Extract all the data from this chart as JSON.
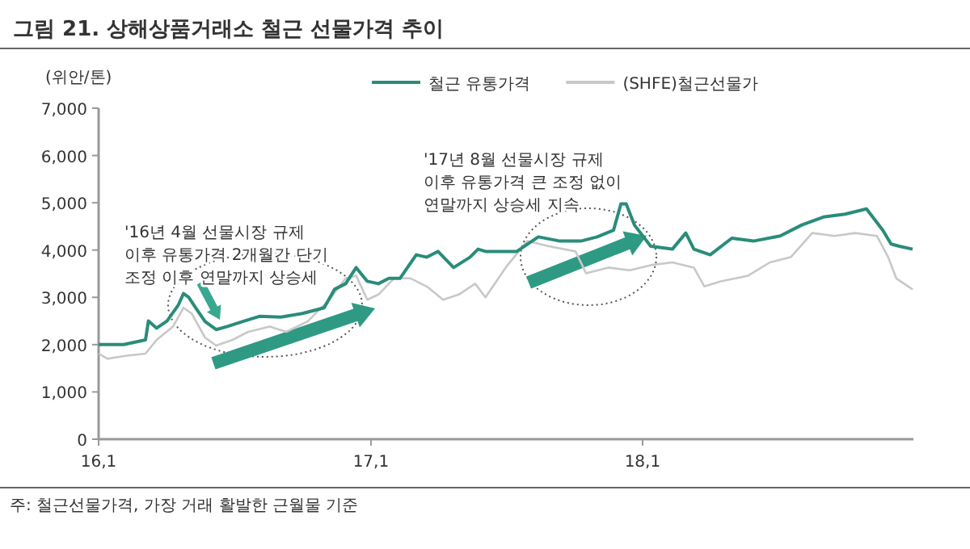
{
  "chart_data": {
    "type": "line",
    "title": "그림 21. 상해상품거래소 철근 선물가격 추이",
    "ylabel": "(위안/톤)",
    "xlim": [
      "2016-01-01",
      "2018-12-31"
    ],
    "xticks": [
      {
        "value": "2016-01-01",
        "label": "16,1"
      },
      {
        "value": "2017-01-01",
        "label": "17,1"
      },
      {
        "value": "2018-01-01",
        "label": "18,1"
      }
    ],
    "ylim": [
      0,
      7000
    ],
    "yticks": [
      {
        "value": 0,
        "label": "0"
      },
      {
        "value": 1000,
        "label": "1,000"
      },
      {
        "value": 2000,
        "label": "2,000"
      },
      {
        "value": 3000,
        "label": "3,000"
      },
      {
        "value": 4000,
        "label": "4,000"
      },
      {
        "value": 5000,
        "label": "5,000"
      },
      {
        "value": 6000,
        "label": "6,000"
      },
      {
        "value": 7000,
        "label": "7,000"
      }
    ],
    "legend": "top",
    "grid": false,
    "marker": "none",
    "line_style": "solid",
    "annotations": [
      "'16년 4월 선물시장 규제\n이후 유통가격 2개월간 단기\n조정 이후 연말까지 상승세",
      "'17년 8월 선물시장 규제\n이후 유통가격 큰 조정 없이\n연말까지 상승세 지속",
      "주: 철근선물가격, 가장 거래 활발한 근월물 기준"
    ],
    "series": [
      {
        "name": "철근 유통가격",
        "color": "#2a8c7a",
        "x": [
          "2016-01-01",
          "2016-02-04",
          "2016-03-04",
          "2016-03-08",
          "2016-03-19",
          "2016-04-02",
          "2016-04-17",
          "2016-04-24",
          "2016-05-01",
          "2016-05-09",
          "2016-05-23",
          "2016-06-07",
          "2016-06-21",
          "2016-07-13",
          "2016-08-04",
          "2016-09-02",
          "2016-10-01",
          "2016-10-30",
          "2016-11-13",
          "2016-11-28",
          "2016-12-12",
          "2016-12-27",
          "2017-01-11",
          "2017-01-25",
          "2017-02-09",
          "2017-03-03",
          "2017-03-17",
          "2017-04-01",
          "2017-04-22",
          "2017-05-14",
          "2017-05-25",
          "2017-06-04",
          "2017-07-16",
          "2017-08-14",
          "2017-09-12",
          "2017-10-10",
          "2017-11-01",
          "2017-11-23",
          "2017-12-03",
          "2017-12-10",
          "2017-12-21",
          "2018-01-12",
          "2018-02-10",
          "2018-02-28",
          "2018-03-11",
          "2018-04-02",
          "2018-05-01",
          "2018-05-30",
          "2018-07-05",
          "2018-08-03",
          "2018-09-01",
          "2018-09-30",
          "2018-10-29",
          "2018-11-20",
          "2018-12-01",
          "2018-12-12",
          "2018-12-30"
        ],
        "values": [
          2000,
          2000,
          2100,
          2500,
          2350,
          2500,
          2830,
          3080,
          3000,
          2810,
          2490,
          2320,
          2380,
          2490,
          2600,
          2580,
          2660,
          2780,
          3170,
          3290,
          3630,
          3340,
          3290,
          3400,
          3400,
          3900,
          3850,
          3970,
          3630,
          3850,
          4020,
          3970,
          3970,
          4280,
          4190,
          4190,
          4280,
          4420,
          4980,
          4980,
          4530,
          4080,
          4020,
          4360,
          4020,
          3900,
          4250,
          4190,
          4300,
          4530,
          4700,
          4760,
          4870,
          4420,
          4130,
          4080,
          4020
        ]
      },
      {
        "name": "(SHFE)철근선물가",
        "color": "#c8c8c8",
        "x": [
          "2016-01-01",
          "2016-01-13",
          "2016-02-04",
          "2016-03-04",
          "2016-03-19",
          "2016-04-10",
          "2016-04-24",
          "2016-05-05",
          "2016-05-23",
          "2016-06-07",
          "2016-06-29",
          "2016-07-20",
          "2016-08-18",
          "2016-09-09",
          "2016-10-08",
          "2016-11-06",
          "2016-11-28",
          "2016-12-12",
          "2016-12-27",
          "2017-01-11",
          "2017-02-01",
          "2017-02-23",
          "2017-03-17",
          "2017-04-08",
          "2017-04-29",
          "2017-05-21",
          "2017-06-04",
          "2017-07-01",
          "2017-07-30",
          "2017-08-28",
          "2017-10-03",
          "2017-10-17",
          "2017-11-16",
          "2017-12-15",
          "2018-01-12",
          "2018-02-10",
          "2018-03-11",
          "2018-03-25",
          "2018-04-16",
          "2018-05-23",
          "2018-06-21",
          "2018-07-19",
          "2018-08-17",
          "2018-09-16",
          "2018-10-14",
          "2018-11-12",
          "2018-11-27",
          "2018-12-08",
          "2018-12-30"
        ],
        "values": [
          1810,
          1700,
          1760,
          1810,
          2100,
          2380,
          2780,
          2660,
          2150,
          1980,
          2100,
          2270,
          2380,
          2270,
          2490,
          2950,
          3400,
          3460,
          2950,
          3060,
          3400,
          3400,
          3230,
          2950,
          3060,
          3290,
          3000,
          3630,
          4190,
          4080,
          3970,
          3510,
          3630,
          3570,
          3680,
          3740,
          3630,
          3230,
          3340,
          3460,
          3740,
          3850,
          4360,
          4300,
          4360,
          4300,
          3850,
          3400,
          3170
        ]
      }
    ]
  }
}
